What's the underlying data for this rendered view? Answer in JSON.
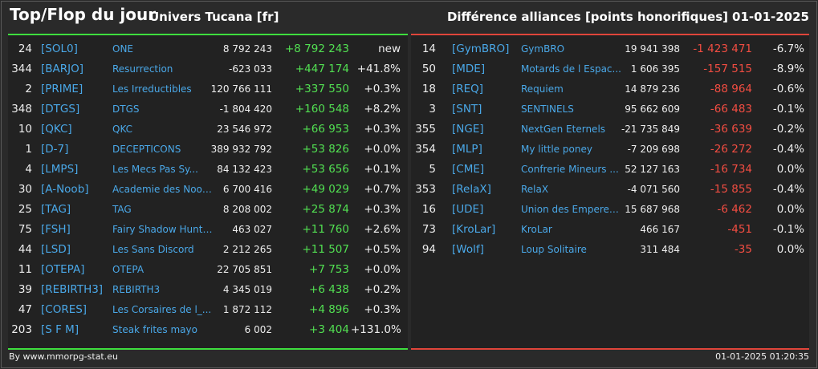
{
  "header": {
    "title": "Top/Flop du jour",
    "universe": "Univers Tucana [fr]",
    "category": "Différence alliances [points honorifiques]",
    "date": "01-01-2025"
  },
  "top": [
    {
      "rank": "24",
      "tag": "[SOL0]",
      "name": "ONE",
      "points": "8 792 243",
      "change": "+8 792 243",
      "pct": "new"
    },
    {
      "rank": "344",
      "tag": "[BARJO]",
      "name": "Resurrection",
      "points": "-623 033",
      "change": "+447 174",
      "pct": "+41.8%"
    },
    {
      "rank": "2",
      "tag": "[PRIME]",
      "name": "Les Irreductibles",
      "points": "120 766 111",
      "change": "+337 550",
      "pct": "+0.3%"
    },
    {
      "rank": "348",
      "tag": "[DTGS]",
      "name": "DTGS",
      "points": "-1 804 420",
      "change": "+160 548",
      "pct": "+8.2%"
    },
    {
      "rank": "10",
      "tag": "[QKC]",
      "name": "QKC",
      "points": "23 546 972",
      "change": "+66 953",
      "pct": "+0.3%"
    },
    {
      "rank": "1",
      "tag": "[D-7]",
      "name": "DECEPTICONS",
      "points": "389 932 792",
      "change": "+53 826",
      "pct": "+0.0%"
    },
    {
      "rank": "4",
      "tag": "[LMPS]",
      "name": "Les Mecs Pas Sy...",
      "points": "84 132 423",
      "change": "+53 656",
      "pct": "+0.1%"
    },
    {
      "rank": "30",
      "tag": "[A-Noob]",
      "name": "Academie des Noob...",
      "points": "6 700 416",
      "change": "+49 029",
      "pct": "+0.7%"
    },
    {
      "rank": "25",
      "tag": "[TAG]",
      "name": "TAG",
      "points": "8 208 002",
      "change": "+25 874",
      "pct": "+0.3%"
    },
    {
      "rank": "75",
      "tag": "[FSH]",
      "name": "Fairy Shadow Hunte...",
      "points": "463 027",
      "change": "+11 760",
      "pct": "+2.6%"
    },
    {
      "rank": "44",
      "tag": "[LSD]",
      "name": "Les Sans Discord",
      "points": "2 212 265",
      "change": "+11 507",
      "pct": "+0.5%"
    },
    {
      "rank": "11",
      "tag": "[OTEPA]",
      "name": "OTEPA",
      "points": "22 705 851",
      "change": "+7 753",
      "pct": "+0.0%"
    },
    {
      "rank": "39",
      "tag": "[REBIRTH3]",
      "name": "REBIRTH3",
      "points": "4 345 019",
      "change": "+6 438",
      "pct": "+0.2%"
    },
    {
      "rank": "47",
      "tag": "[CORES]",
      "name": "Les Corsaires de l_...",
      "points": "1 872 112",
      "change": "+4 896",
      "pct": "+0.3%"
    },
    {
      "rank": "203",
      "tag": "[S F M]",
      "name": "Steak frites mayo",
      "points": "6 002",
      "change": "+3 404",
      "pct": "+131.0%"
    }
  ],
  "flop": [
    {
      "rank": "14",
      "tag": "[GymBRO]",
      "name": "GymBRO",
      "points": "19 941 398",
      "change": "-1 423 471",
      "pct": "-6.7%"
    },
    {
      "rank": "50",
      "tag": "[MDE]",
      "name": "Motards de l Espac...",
      "points": "1 606 395",
      "change": "-157 515",
      "pct": "-8.9%"
    },
    {
      "rank": "18",
      "tag": "[REQ]",
      "name": "Requiem",
      "points": "14 879 236",
      "change": "-88 964",
      "pct": "-0.6%"
    },
    {
      "rank": "3",
      "tag": "[SNT]",
      "name": "SENTINELS",
      "points": "95 662 609",
      "change": "-66 483",
      "pct": "-0.1%"
    },
    {
      "rank": "355",
      "tag": "[NGE]",
      "name": "NextGen Eternels",
      "points": "-21 735 849",
      "change": "-36 639",
      "pct": "-0.2%"
    },
    {
      "rank": "354",
      "tag": "[MLP]",
      "name": "My little poney",
      "points": "-7 209 698",
      "change": "-26 272",
      "pct": "-0.4%"
    },
    {
      "rank": "5",
      "tag": "[CME]",
      "name": "Confrerie Mineurs ...",
      "points": "52 127 163",
      "change": "-16 734",
      "pct": "0.0%"
    },
    {
      "rank": "353",
      "tag": "[RelaX]",
      "name": "RelaX",
      "points": "-4 071 560",
      "change": "-15 855",
      "pct": "-0.4%"
    },
    {
      "rank": "16",
      "tag": "[UDE]",
      "name": "Union des Empereur...",
      "points": "15 687 968",
      "change": "-6 462",
      "pct": "0.0%"
    },
    {
      "rank": "73",
      "tag": "[KroLar]",
      "name": "KroLar",
      "points": "466 167",
      "change": "-451",
      "pct": "-0.1%"
    },
    {
      "rank": "94",
      "tag": "[Wolf]",
      "name": "Loup Solitaire",
      "points": "311 484",
      "change": "-35",
      "pct": "0.0%"
    }
  ],
  "footer": {
    "source": "By www.mmorpg-stat.eu",
    "timestamp": "01-01-2025 01:20:35"
  },
  "colors": {
    "background": "#2a2a2a",
    "panel": "#222222",
    "tag_blue": "#4aa8e8",
    "positive_green": "#52e052",
    "negative_red": "#f24d42",
    "top_border": "#3ede3e",
    "flop_border": "#e0453a"
  }
}
